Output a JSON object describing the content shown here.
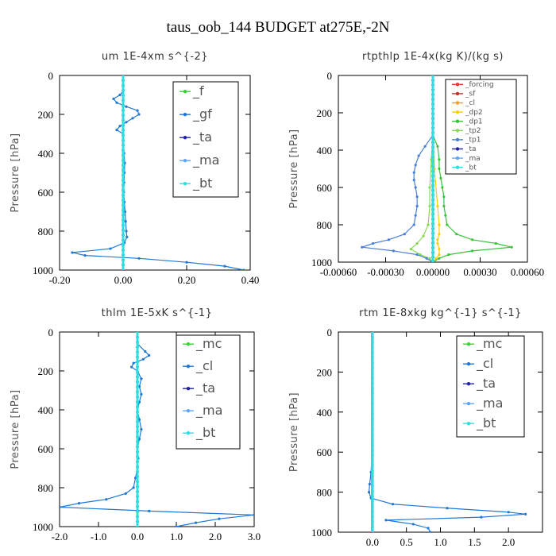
{
  "figure": {
    "suptitle": "taus_oob_144  BUDGET at275E,-2N"
  },
  "chart_data": [
    {
      "type": "line",
      "title": "um   1E-4xm s^{-2}",
      "ylabel": "Pressure [hPa]",
      "xlim": [
        -0.2,
        0.4
      ],
      "ylim": [
        1000,
        0
      ],
      "x_ticks": [
        -0.2,
        0.0,
        0.2,
        0.4
      ],
      "x_tick_labels": [
        "-0.20",
        "0.00",
        "0.20",
        "0.40"
      ],
      "y_ticks": [
        0,
        200,
        400,
        600,
        800,
        1000
      ],
      "y_tick_labels": [
        "0",
        "200",
        "400",
        "600",
        "800",
        "1000"
      ],
      "legend": [
        "_f",
        "_gf",
        "_ta",
        "_ma",
        "_bt"
      ],
      "legend_placement": "top-right",
      "series": [
        {
          "name": "_f",
          "color": "#3ad13a",
          "pressure": [
            0,
            100,
            200,
            300,
            400,
            500,
            600,
            700,
            800,
            900,
            1000
          ],
          "values": [
            0,
            0,
            0,
            0,
            0,
            0,
            0,
            0,
            0,
            0,
            0
          ]
        },
        {
          "name": "_gf",
          "color": "#1f78d6",
          "pressure": [
            0,
            50,
            80,
            100,
            120,
            140,
            160,
            180,
            200,
            220,
            240,
            260,
            280,
            300,
            350,
            400,
            450,
            500,
            550,
            600,
            650,
            700,
            750,
            800,
            830,
            860,
            890,
            910,
            925,
            940,
            960,
            980,
            1000
          ],
          "values": [
            0,
            0,
            0,
            -0.01,
            -0.03,
            -0.02,
            0.01,
            0.045,
            0.05,
            0.03,
            0.01,
            -0.01,
            -0.02,
            0.0,
            0.0,
            0.003,
            0.005,
            0.004,
            0.003,
            0.002,
            0.004,
            0.006,
            0.008,
            0.01,
            0.012,
            0.004,
            -0.04,
            -0.16,
            -0.12,
            0.05,
            0.2,
            0.32,
            0.38
          ]
        },
        {
          "name": "_ta",
          "color": "#2222aa",
          "pressure": [
            0,
            1000
          ],
          "values": [
            0,
            0
          ]
        },
        {
          "name": "_ma",
          "color": "#5fa8ff",
          "pressure": [
            0,
            1000
          ],
          "values": [
            0,
            0
          ]
        },
        {
          "name": "_bt",
          "color": "#2ce0e0",
          "pressure": [
            0,
            1000
          ],
          "values": [
            0,
            0
          ]
        }
      ]
    },
    {
      "type": "line",
      "title": "rtpthlp   1E-4x(kg K)/(kg s)",
      "ylabel": "Pressure [hPa]",
      "xlim": [
        -0.0006,
        0.0006
      ],
      "ylim": [
        1000,
        0
      ],
      "x_ticks": [
        -0.0006,
        -0.0003,
        0.0,
        0.0003,
        0.0006
      ],
      "x_tick_labels": [
        "-0.00060",
        "-0.00030",
        "0.00000",
        "0.00030",
        "0.00060"
      ],
      "y_ticks": [
        0,
        200,
        400,
        600,
        800,
        1000
      ],
      "y_tick_labels": [
        "0",
        "200",
        "400",
        "600",
        "800",
        "1000"
      ],
      "legend": [
        "_forcing",
        "_sf",
        "_cl",
        "_dp2",
        "_dp1",
        "_tp2",
        "_tp1",
        "_ta",
        "_ma",
        "_bt"
      ],
      "legend_placement": "top-right",
      "series": [
        {
          "name": "_forcing",
          "color": "#e03a2a",
          "pressure": [
            0,
            1000
          ],
          "values": [
            0,
            0
          ]
        },
        {
          "name": "_sf",
          "color": "#c8302a",
          "pressure": [
            0,
            1000
          ],
          "values": [
            0,
            0
          ]
        },
        {
          "name": "_cl",
          "color": "#f0a020",
          "pressure": [
            0,
            1000
          ],
          "values": [
            0,
            0
          ]
        },
        {
          "name": "_dp2",
          "color": "#f5d000",
          "pressure": [
            0,
            300,
            500,
            700,
            800,
            850,
            880,
            900,
            930,
            960,
            980,
            1000
          ],
          "values": [
            0,
            0,
            1e-05,
            3e-05,
            4e-05,
            4e-05,
            3e-05,
            3e-05,
            4e-05,
            4e-05,
            2e-05,
            0.0
          ]
        },
        {
          "name": "_dp1",
          "color": "#3ac23a",
          "pressure": [
            0,
            320,
            380,
            450,
            500,
            550,
            600,
            650,
            700,
            750,
            800,
            850,
            880,
            900,
            920,
            940,
            960,
            980,
            1000
          ],
          "values": [
            0,
            0,
            3e-05,
            4e-05,
            4e-05,
            5e-05,
            6e-05,
            7e-05,
            7e-05,
            8e-05,
            9e-05,
            0.00015,
            0.00025,
            0.0004,
            0.0005,
            0.00025,
            0.0001,
            4e-05,
            0.0
          ]
        },
        {
          "name": "_tp2",
          "color": "#8ad85a",
          "pressure": [
            0,
            320,
            450,
            600,
            700,
            800,
            860,
            900,
            930,
            960,
            980,
            1000
          ],
          "values": [
            0,
            0,
            -1e-05,
            -2e-05,
            -2e-05,
            -3e-05,
            -6e-05,
            -0.0001,
            -0.00014,
            -8e-05,
            -2e-05,
            0.0
          ]
        },
        {
          "name": "_tp1",
          "color": "#4a7fd8",
          "pressure": [
            0,
            320,
            380,
            430,
            480,
            520,
            560,
            600,
            650,
            700,
            750,
            800,
            850,
            880,
            900,
            920,
            940,
            960,
            980,
            1000
          ],
          "values": [
            0,
            0,
            -5e-05,
            -9e-05,
            -0.00011,
            -0.00012,
            -0.00012,
            -0.00011,
            -0.0001,
            -0.0001,
            -0.00011,
            -0.00012,
            -0.00018,
            -0.00028,
            -0.00038,
            -0.00045,
            -0.00025,
            -0.0001,
            -4e-05,
            0.0
          ]
        },
        {
          "name": "_ta",
          "color": "#2222aa",
          "pressure": [
            0,
            1000
          ],
          "values": [
            0,
            0
          ]
        },
        {
          "name": "_ma",
          "color": "#5fa8ff",
          "pressure": [
            0,
            1000
          ],
          "values": [
            0,
            0
          ]
        },
        {
          "name": "_bt",
          "color": "#2ce0e0",
          "pressure": [
            0,
            1000
          ],
          "values": [
            0,
            0
          ]
        }
      ]
    },
    {
      "type": "line",
      "title": "thlm   1E-5xK s^{-1}",
      "ylabel": "Pressure [hPa]",
      "xlim": [
        -2.0,
        3.0
      ],
      "ylim": [
        1000,
        0
      ],
      "x_ticks": [
        -2.0,
        -1.0,
        0.0,
        1.0,
        2.0,
        3.0
      ],
      "x_tick_labels": [
        "-2.0",
        "-1.0",
        "0.0",
        "1.0",
        "2.0",
        "3.0"
      ],
      "y_ticks": [
        0,
        200,
        400,
        600,
        800,
        1000
      ],
      "y_tick_labels": [
        "0",
        "200",
        "400",
        "600",
        "800",
        "1000"
      ],
      "legend": [
        "_mc",
        "_cl",
        "_ta",
        "_ma",
        "_bt"
      ],
      "legend_placement": "top-right",
      "series": [
        {
          "name": "_mc",
          "color": "#3ad13a",
          "pressure": [
            0,
            1000
          ],
          "values": [
            0,
            0
          ]
        },
        {
          "name": "_cl",
          "color": "#1f78d6",
          "pressure": [
            0,
            60,
            100,
            120,
            140,
            160,
            180,
            200,
            240,
            280,
            320,
            360,
            400,
            450,
            500,
            550,
            600,
            650,
            700,
            750,
            800,
            830,
            860,
            880,
            900,
            920,
            940,
            960,
            980,
            1000
          ],
          "values": [
            0,
            0,
            0.2,
            0.3,
            0.15,
            -0.1,
            -0.15,
            0.0,
            0.1,
            0.05,
            0.1,
            0.05,
            0.0,
            0.05,
            0.1,
            0.05,
            0.0,
            0.02,
            0.0,
            -0.05,
            -0.1,
            -0.3,
            -0.8,
            -1.5,
            -2.0,
            0.3,
            3.0,
            2.1,
            1.5,
            1.0
          ]
        },
        {
          "name": "_ta",
          "color": "#2222aa",
          "pressure": [
            0,
            1000
          ],
          "values": [
            0,
            0
          ]
        },
        {
          "name": "_ma",
          "color": "#5fa8ff",
          "pressure": [
            0,
            1000
          ],
          "values": [
            0,
            0
          ]
        },
        {
          "name": "_bt",
          "color": "#2ce0e0",
          "pressure": [
            0,
            1000
          ],
          "values": [
            0,
            0
          ]
        }
      ]
    },
    {
      "type": "line",
      "title": "rtm   1E-8xkg kg^{-1} s^{-1}",
      "ylabel": "Pressure [hPa]",
      "xlim": [
        -0.5,
        2.5
      ],
      "ylim": [
        1000,
        0
      ],
      "x_ticks": [
        0.0,
        0.5,
        1.0,
        1.5,
        2.0
      ],
      "x_tick_labels": [
        "0.0",
        "0.5",
        "1.0",
        "1.5",
        "2.0"
      ],
      "y_ticks": [
        0,
        200,
        400,
        600,
        800,
        1000
      ],
      "y_tick_labels": [
        "0",
        "200",
        "400",
        "600",
        "800",
        "1000"
      ],
      "legend": [
        "_mc",
        "_cl",
        "_ta",
        "_ma",
        "_bt"
      ],
      "legend_placement": "top-right",
      "series": [
        {
          "name": "_mc",
          "color": "#3ad13a",
          "pressure": [
            0,
            1000
          ],
          "values": [
            0,
            0
          ]
        },
        {
          "name": "_cl",
          "color": "#1f78d6",
          "pressure": [
            0,
            100,
            200,
            300,
            400,
            500,
            600,
            700,
            760,
            800,
            830,
            860,
            880,
            900,
            910,
            925,
            940,
            960,
            980,
            1000
          ],
          "values": [
            0,
            0,
            0,
            0,
            0.0,
            0.0,
            0.0,
            -0.02,
            -0.04,
            -0.05,
            -0.02,
            0.3,
            1.1,
            2.0,
            2.25,
            1.6,
            0.2,
            0.6,
            0.82,
            0.85
          ]
        },
        {
          "name": "_ta",
          "color": "#2222aa",
          "pressure": [
            0,
            1000
          ],
          "values": [
            0,
            0
          ]
        },
        {
          "name": "_ma",
          "color": "#5fa8ff",
          "pressure": [
            0,
            1000
          ],
          "values": [
            0,
            0
          ]
        },
        {
          "name": "_bt",
          "color": "#2ce0e0",
          "pressure": [
            0,
            1000
          ],
          "values": [
            0,
            0
          ]
        }
      ]
    }
  ]
}
